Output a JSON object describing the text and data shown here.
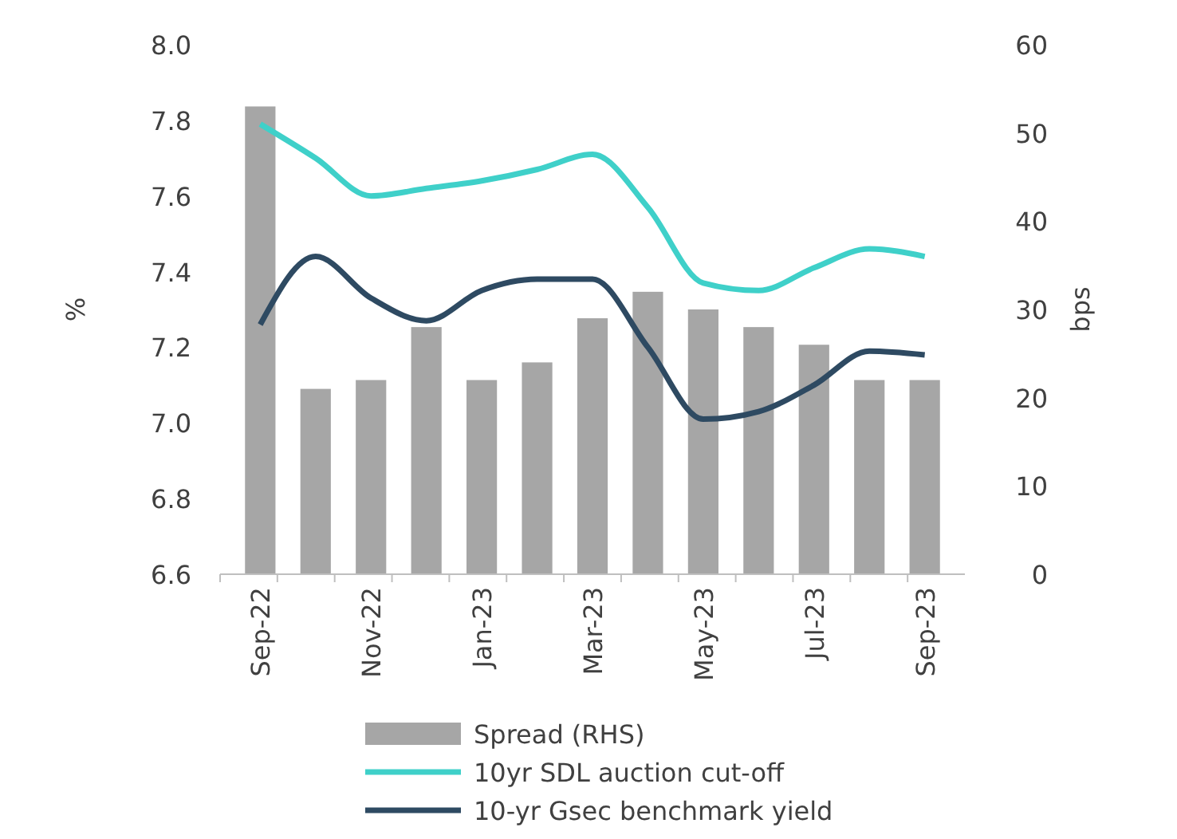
{
  "chart_data": {
    "type": "bar",
    "categories": [
      "Sep-22",
      null,
      "Nov-22",
      null,
      "Jan-23",
      null,
      "Mar-23",
      null,
      "May-23",
      null,
      "Jul-23",
      null,
      "Sep-23"
    ],
    "ylabel": "%",
    "y2label": "bps",
    "ylim": [
      6.6,
      8.0
    ],
    "yticks": [
      {
        "value": 6.6,
        "label": "6.6"
      },
      {
        "value": 6.8,
        "label": "6.8"
      },
      {
        "value": 7.0,
        "label": "7.0"
      },
      {
        "value": 7.2,
        "label": "7.2"
      },
      {
        "value": 7.4,
        "label": "7.4"
      },
      {
        "value": 7.6,
        "label": "7.6"
      },
      {
        "value": 7.8,
        "label": "7.8"
      },
      {
        "value": 8.0,
        "label": "8.0"
      }
    ],
    "y2lim": [
      0,
      60
    ],
    "y2ticks": [
      0,
      10,
      20,
      30,
      40,
      50,
      60
    ],
    "legend": "bottom",
    "grid": false,
    "series": [
      {
        "name": "Spread (RHS)",
        "axis": "y2",
        "color": "#a6a6a6",
        "values": [
          53,
          21,
          22,
          28,
          22,
          24,
          29,
          32,
          30,
          28,
          26,
          22,
          22
        ]
      },
      {
        "name": "10yr SDL auction cut-off",
        "type": "line",
        "axis": "y",
        "color": "#3fd0c9",
        "values": [
          7.79,
          7.7,
          7.6,
          7.62,
          7.64,
          7.67,
          7.71,
          7.57,
          7.37,
          7.35,
          7.41,
          7.46,
          7.44
        ]
      },
      {
        "name": "10-yr Gsec benchmark yield",
        "type": "line",
        "axis": "y",
        "color": "#2e4a62",
        "values": [
          7.26,
          7.44,
          7.33,
          7.27,
          7.35,
          7.38,
          7.38,
          7.2,
          7.01,
          7.03,
          7.1,
          7.19,
          7.18
        ]
      }
    ]
  }
}
